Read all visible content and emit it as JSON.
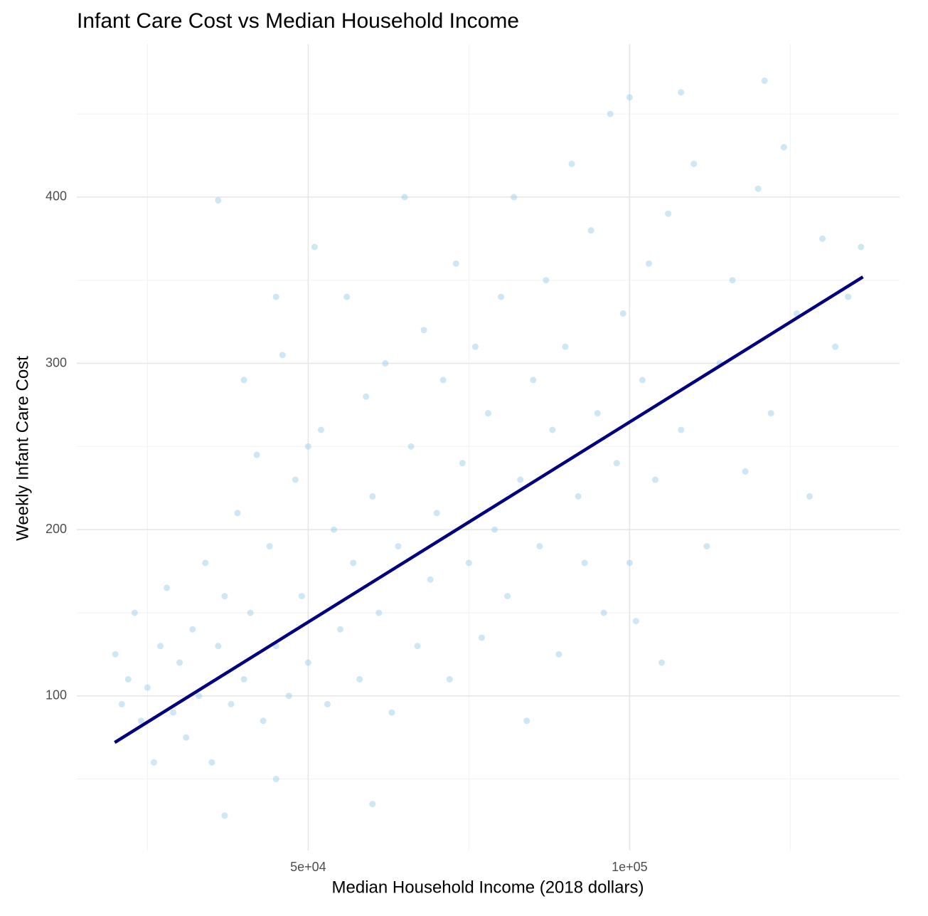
{
  "chart_data": {
    "type": "scatter",
    "title": "Infant Care Cost vs Median Household Income",
    "x_label": "Median Household Income (2018 dollars)",
    "y_label": "Weekly Infant Care Cost",
    "color": "#94c8e8",
    "x": [
      20000,
      21000,
      22000,
      23000,
      24000,
      25000,
      26000,
      27000,
      28000,
      29000,
      30000,
      31000,
      32000,
      33000,
      34000,
      35000,
      36000,
      37000,
      38000,
      39000,
      40000,
      41000,
      42000,
      43000,
      44000,
      45000,
      46000,
      47000,
      48000,
      49000,
      50000,
      51000,
      52000,
      53000,
      54000,
      55000,
      56000,
      57000,
      58000,
      59000,
      60000,
      61000,
      62000,
      63000,
      64000,
      65000,
      66000,
      67000,
      68000,
      69000,
      70000,
      71000,
      72000,
      73000,
      74000,
      75000,
      76000,
      77000,
      78000,
      79000,
      80000,
      81000,
      82000,
      83000,
      84000,
      85000,
      86000,
      87000,
      88000,
      89000,
      90000,
      91000,
      92000,
      93000,
      94000,
      95000,
      96000,
      97000,
      98000,
      99000,
      100000,
      101000,
      102000,
      103000,
      104000,
      105000,
      106000,
      108000,
      110000,
      112000,
      114000,
      116000,
      118000,
      120000,
      122000,
      124000,
      126000,
      128000,
      130000,
      132000,
      134000,
      136000,
      36000,
      37000,
      45000,
      60000,
      100000,
      108000,
      121000,
      50000,
      45000,
      40000
    ],
    "values": [
      125,
      95,
      110,
      150,
      85,
      105,
      60,
      130,
      165,
      90,
      120,
      75,
      140,
      100,
      180,
      60,
      130,
      160,
      95,
      210,
      110,
      150,
      245,
      85,
      190,
      130,
      305,
      100,
      230,
      160,
      120,
      370,
      260,
      95,
      200,
      140,
      340,
      180,
      110,
      280,
      220,
      150,
      300,
      90,
      190,
      400,
      250,
      130,
      320,
      170,
      210,
      290,
      110,
      360,
      240,
      180,
      310,
      135,
      270,
      200,
      340,
      160,
      400,
      230,
      85,
      290,
      190,
      350,
      260,
      125,
      310,
      420,
      220,
      180,
      380,
      270,
      150,
      450,
      240,
      330,
      180,
      145,
      290,
      360,
      230,
      120,
      390,
      260,
      420,
      190,
      300,
      350,
      235,
      405,
      270,
      430,
      330,
      220,
      375,
      310,
      340,
      370,
      398,
      28,
      50,
      35,
      460,
      463,
      470,
      250,
      340,
      290
    ],
    "fit": {
      "color": "#000080",
      "x": [
        19900,
        136300
      ],
      "values": [
        72,
        352
      ]
    },
    "xlim": [
      14000,
      142000
    ],
    "ylim": [
      7,
      492
    ],
    "xticks": [
      {
        "value": 50000,
        "label": "5e+04"
      },
      {
        "value": 100000,
        "label": "1e+05"
      }
    ],
    "yticks": [
      100,
      200,
      300,
      400
    ],
    "x_minor_grid": [
      25000,
      75000,
      125000
    ],
    "y_minor_grid": [
      50,
      150,
      250,
      350,
      450
    ],
    "grid": true
  }
}
